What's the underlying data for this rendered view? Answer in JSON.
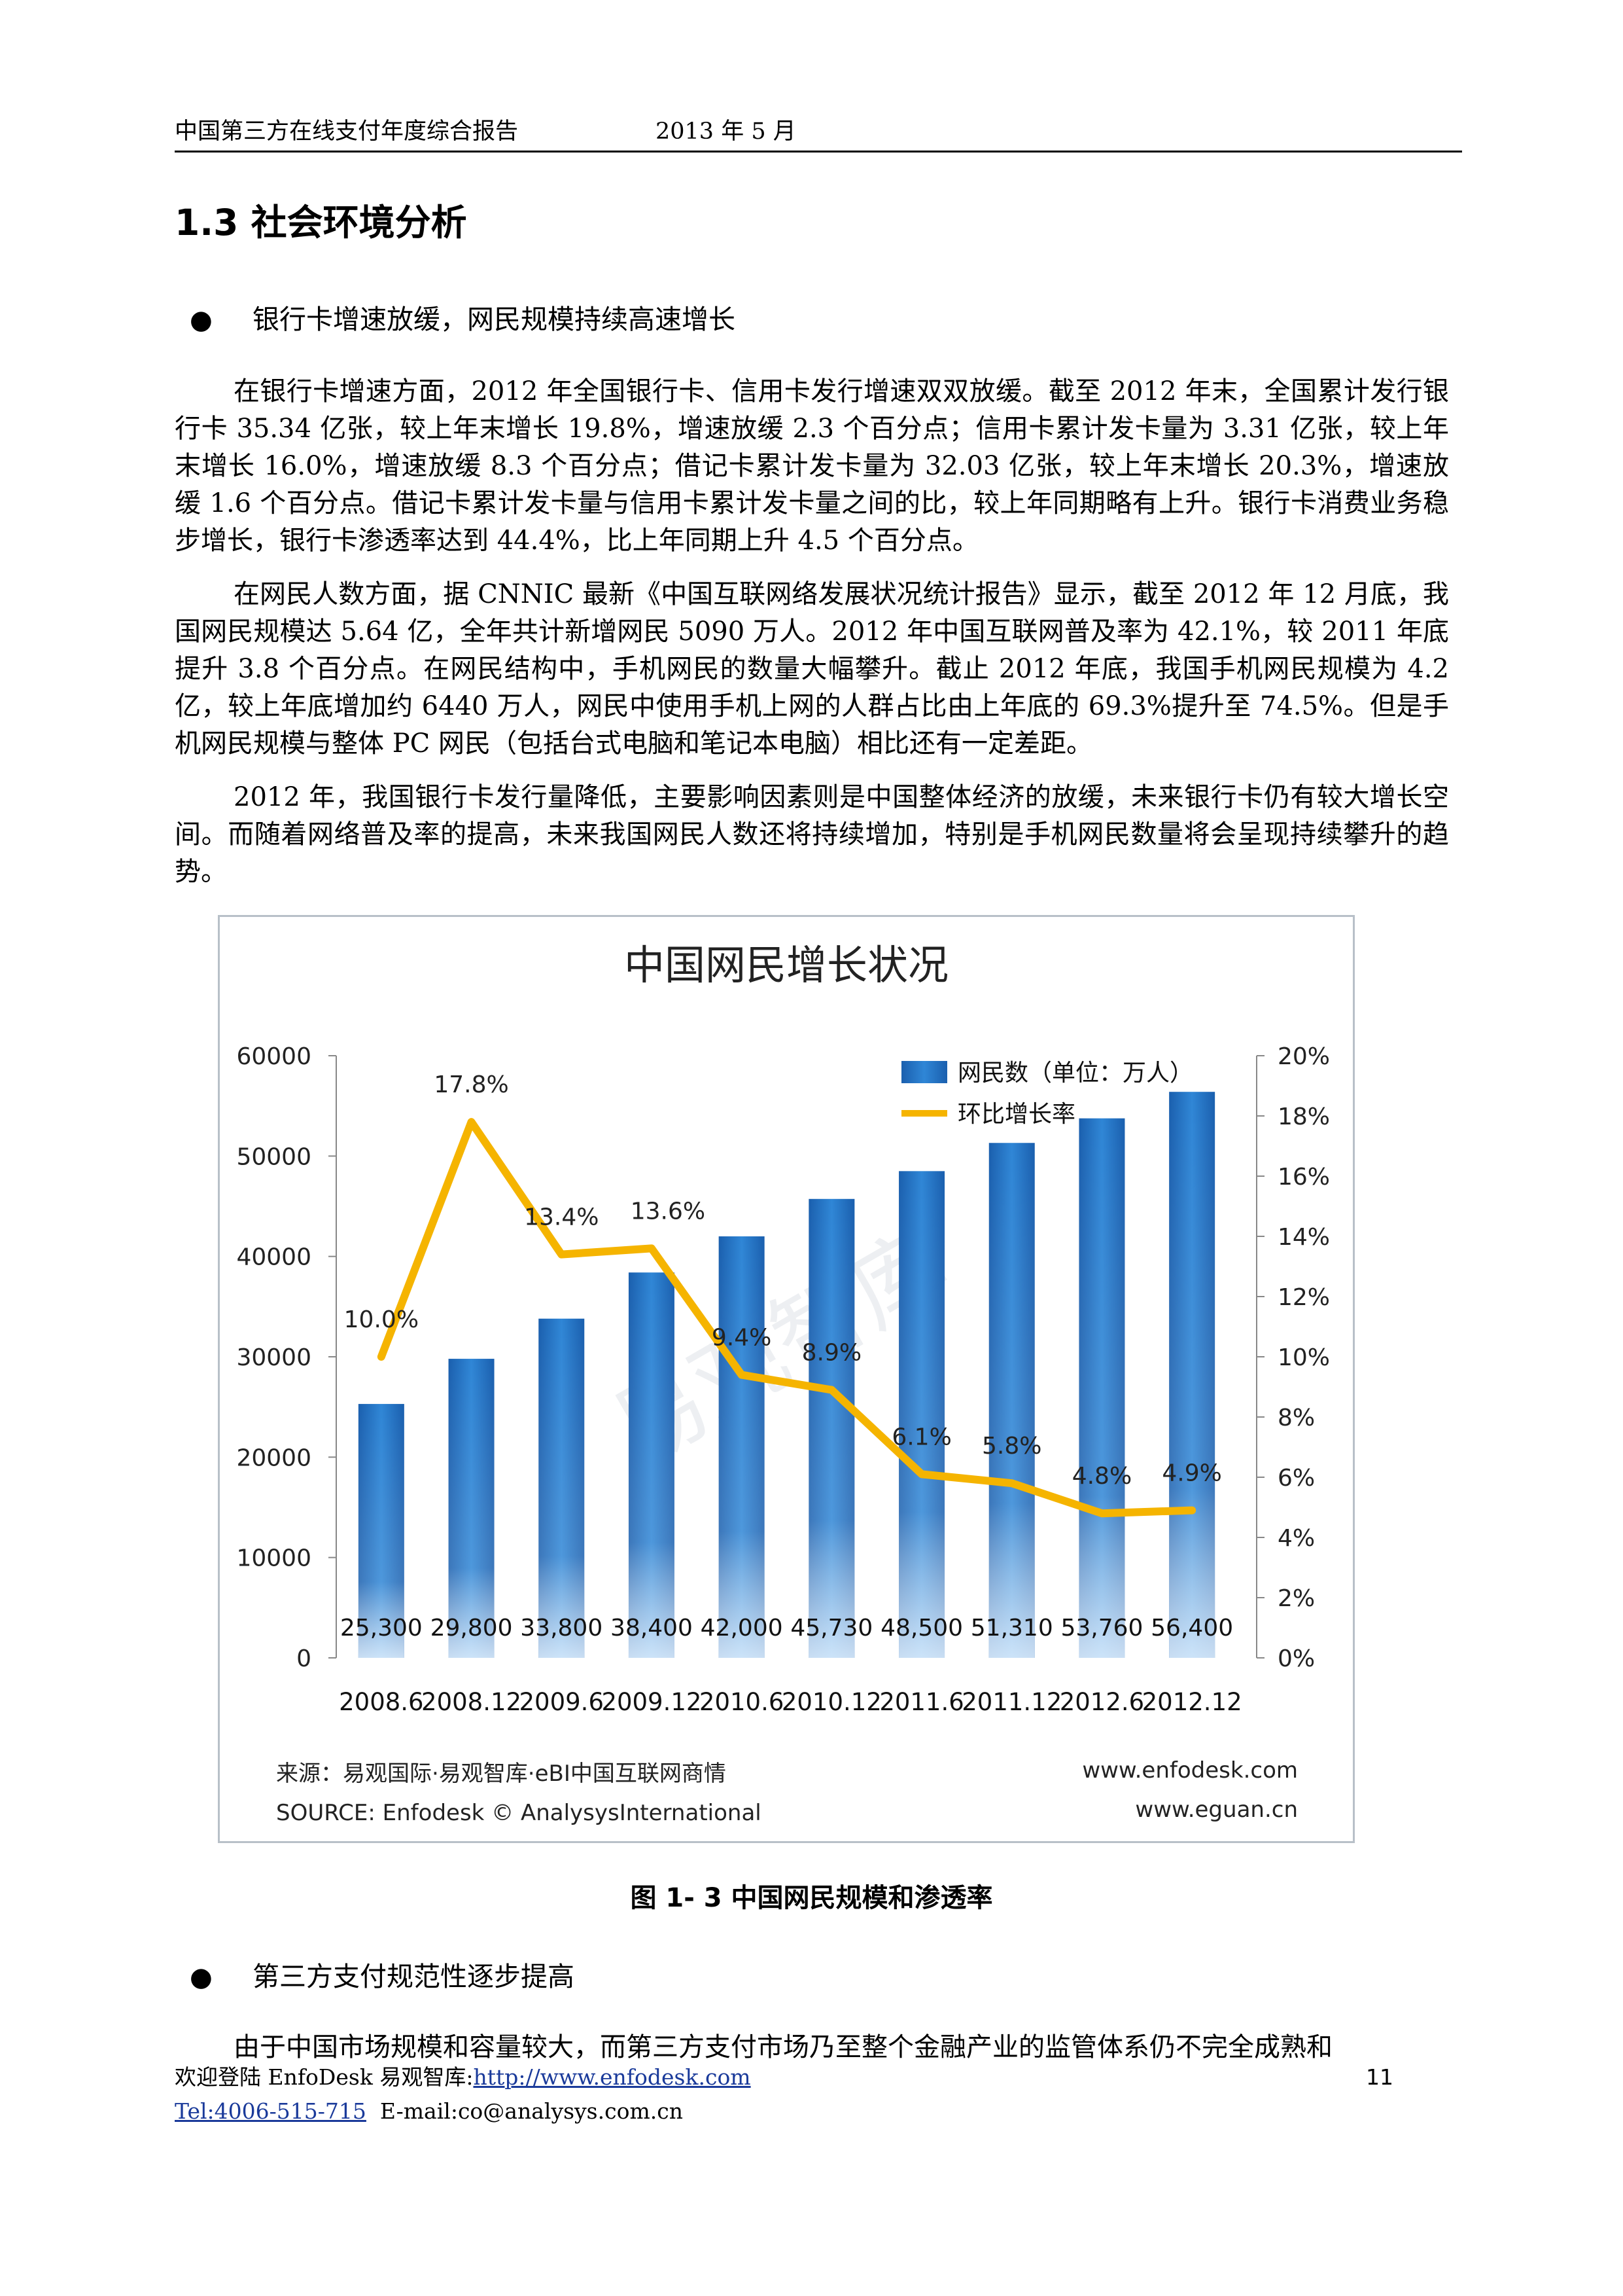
{
  "header": {
    "title": "中国第三方在线支付年度综合报告",
    "date": "2013 年 5 月"
  },
  "section_title": "1.3 社会环境分析",
  "bullet1": "银行卡增速放缓，网民规模持续高速增长",
  "paragraphs": [
    "在银行卡增速方面，2012 年全国银行卡、信用卡发行增速双双放缓。截至 2012 年末，全国累计发行银行卡 35.34 亿张，较上年末增长 19.8%，增速放缓 2.3 个百分点；信用卡累计发卡量为 3.31 亿张，较上年末增长 16.0%，增速放缓 8.3 个百分点；借记卡累计发卡量为 32.03 亿张，较上年末增长 20.3%，增速放缓 1.6 个百分点。借记卡累计发卡量与信用卡累计发卡量之间的比，较上年同期略有上升。银行卡消费业务稳步增长，银行卡渗透率达到 44.4%，比上年同期上升 4.5 个百分点。",
    "在网民人数方面，据 CNNIC 最新《中国互联网络发展状况统计报告》显示，截至 2012 年 12 月底，我国网民规模达 5.64 亿，全年共计新增网民 5090 万人。2012 年中国互联网普及率为 42.1%，较 2011 年底提升 3.8 个百分点。在网民结构中，手机网民的数量大幅攀升。截止 2012 年底，我国手机网民规模为 4.2 亿，较上年底增加约 6440 万人，网民中使用手机上网的人群占比由上年底的 69.3%提升至 74.5%。但是手机网民规模与整体 PC 网民（包括台式电脑和笔记本电脑）相比还有一定差距。",
    "2012 年，我国银行卡发行量降低，主要影响因素则是中国整体经济的放缓，未来银行卡仍有较大增长空间。而随着网络普及率的提高，未来我国网民人数还将持续增加，特别是手机网民数量将会呈现持续攀升的趋势。"
  ],
  "chart_data": {
    "type": "bar",
    "title": "中国网民增长状况",
    "categories": [
      "2008.6",
      "2008.12",
      "2009.6",
      "2009.12",
      "2010.6",
      "2010.12",
      "2011.6",
      "2011.12",
      "2012.6",
      "2012.12"
    ],
    "series": [
      {
        "name": "网民数（单位：万人）",
        "type": "bar",
        "axis": "left",
        "values": [
          25300,
          29800,
          33800,
          38400,
          42000,
          45730,
          48500,
          51310,
          53760,
          56400
        ],
        "labels": [
          "25,300",
          "29,800",
          "33,800",
          "38,400",
          "42,000",
          "45,730",
          "48,500",
          "51,310",
          "53,760",
          "56,400"
        ]
      },
      {
        "name": "环比增长率",
        "type": "line",
        "axis": "right",
        "values": [
          10.0,
          17.8,
          13.4,
          13.6,
          9.4,
          8.9,
          6.1,
          5.8,
          4.8,
          4.9
        ],
        "labels": [
          "10.0%",
          "17.8%",
          "13.4%",
          "13.6%",
          "9.4%",
          "8.9%",
          "6.1%",
          "5.8%",
          "4.8%",
          "4.9%"
        ]
      }
    ],
    "left_axis": {
      "ylim": [
        0,
        60000
      ],
      "ticks": [
        "0",
        "10000",
        "20000",
        "30000",
        "40000",
        "50000",
        "60000"
      ]
    },
    "right_axis": {
      "ylim": [
        0,
        20
      ],
      "ticks": [
        "0%",
        "2%",
        "4%",
        "6%",
        "8%",
        "10%",
        "12%",
        "14%",
        "16%",
        "18%",
        "20%"
      ]
    },
    "legend_position": "top-right",
    "source_line1": "来源：易观国际·易观智库·eBI中国互联网商情",
    "source_line2": "SOURCE: Enfodesk © AnalysysInternational",
    "site1": "www.enfodesk.com",
    "site2": "www.eguan.cn",
    "watermark": "易观智库",
    "colors": {
      "bar": "#1f6fc0",
      "bar_light": "#6fb6ec",
      "line": "#f5b400"
    }
  },
  "caption": "图 1- 3 中国网民规模和渗透率",
  "bullet2": "第三方支付规范性逐步提高",
  "para_last": "由于中国市场规模和容量较大，而第三方支付市场乃至整个金融产业的监管体系仍不完全成熟和",
  "footer": {
    "welcome": "欢迎登陆 EnfoDesk  易观智库:",
    "url": "http://www.enfodesk.com",
    "tel": "Tel:4006-515-715",
    "email": "E-mail:co@analysys.com.cn",
    "page": "11"
  }
}
